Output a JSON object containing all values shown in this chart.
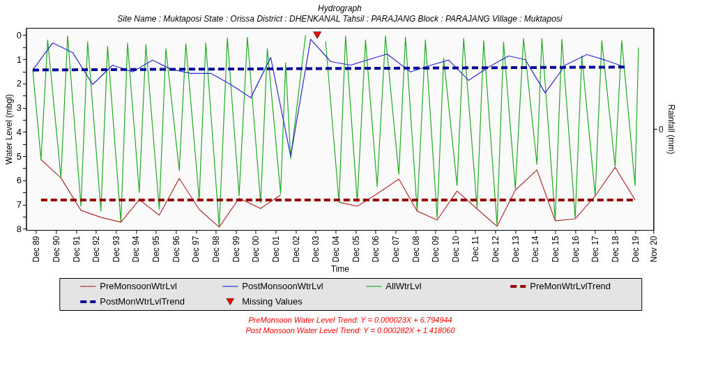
{
  "chart_data": {
    "type": "line",
    "title": "Hydrograph",
    "subtitle": "Site Name : Muktaposi  State : Orissa District : DHENKANAL  Tahsil : PARAJANG  Block : PARAJANG Village : Muktaposi",
    "xlabel": "Time",
    "ylabel": "Water Level (mbgl)",
    "y2label": "Rainfall (mm)",
    "xlim": [
      "1989-06-01",
      "2020-11-01"
    ],
    "xticks": [
      {
        "value": "1989-12-01",
        "label": "Dec 89"
      },
      {
        "value": "1990-12-01",
        "label": "Dec 90"
      },
      {
        "value": "1991-12-01",
        "label": "Dec 91"
      },
      {
        "value": "1992-12-01",
        "label": "Dec 92"
      },
      {
        "value": "1993-12-01",
        "label": "Dec 93"
      },
      {
        "value": "1994-12-01",
        "label": "Dec 94"
      },
      {
        "value": "1995-12-01",
        "label": "Dec 95"
      },
      {
        "value": "1996-12-01",
        "label": "Dec 96"
      },
      {
        "value": "1997-12-01",
        "label": "Dec 97"
      },
      {
        "value": "1998-12-01",
        "label": "Dec 98"
      },
      {
        "value": "1999-12-01",
        "label": "Dec 99"
      },
      {
        "value": "2000-12-01",
        "label": "Dec 00"
      },
      {
        "value": "2001-12-01",
        "label": "Dec 01"
      },
      {
        "value": "2002-12-01",
        "label": "Dec 02"
      },
      {
        "value": "2003-12-01",
        "label": "Dec 03"
      },
      {
        "value": "2004-12-01",
        "label": "Dec 04"
      },
      {
        "value": "2005-12-01",
        "label": "Dec 05"
      },
      {
        "value": "2006-12-01",
        "label": "Dec 06"
      },
      {
        "value": "2007-12-01",
        "label": "Dec 07"
      },
      {
        "value": "2008-12-01",
        "label": "Dec 08"
      },
      {
        "value": "2009-12-01",
        "label": "Dec 09"
      },
      {
        "value": "2010-12-01",
        "label": "Dec 10"
      },
      {
        "value": "2011-12-01",
        "label": "Dec 11"
      },
      {
        "value": "2012-12-01",
        "label": "Dec 12"
      },
      {
        "value": "2013-12-01",
        "label": "Dec 13"
      },
      {
        "value": "2014-12-01",
        "label": "Dec 14"
      },
      {
        "value": "2015-12-01",
        "label": "Dec 15"
      },
      {
        "value": "2016-12-01",
        "label": "Dec 16"
      },
      {
        "value": "2017-12-01",
        "label": "Dec 17"
      },
      {
        "value": "2018-12-01",
        "label": "Dec 18"
      },
      {
        "value": "2019-12-01",
        "label": "Dec 19"
      },
      {
        "value": "2020-11-01",
        "label": "Nov 20"
      }
    ],
    "ylim": [
      8.05,
      -0.3
    ],
    "yticks": [
      0,
      {
        "value": 0.5,
        "label": null
      },
      1,
      {
        "value": 1.5,
        "label": null
      },
      2,
      {
        "value": 2.5,
        "label": null
      },
      3,
      {
        "value": 3.5,
        "label": null
      },
      4,
      {
        "value": 4.5,
        "label": null
      },
      5,
      {
        "value": 5.5,
        "label": null
      },
      6,
      {
        "value": 6.5,
        "label": null
      },
      7,
      {
        "value": 7.5,
        "label": null
      },
      8
    ],
    "grid": false,
    "legend": "bottom",
    "series": [
      {
        "name": "PreMonsoonWtrLvl",
        "color": "#b03030",
        "line_style": "solid",
        "x": [
          "1990-03",
          "1991-03",
          "1992-03",
          "1993-03",
          "1994-03",
          "1995-02",
          "1996-02",
          "1997-02",
          "1998-02",
          "1999-02",
          "2000-02",
          "2001-03",
          "2002-03",
          "2004-01",
          "2005-02",
          "2006-01",
          "2007-01",
          "2008-02",
          "2009-01",
          "2010-01",
          "2011-01",
          "2012-01",
          "2013-01",
          "2013-12",
          "2015-01",
          "2015-12",
          "2016-12",
          "2017-12",
          "2018-12",
          "2019-12"
        ],
        "values": [
          5.14,
          5.9,
          7.24,
          7.53,
          7.73,
          6.8,
          7.44,
          5.92,
          7.2,
          7.93,
          6.74,
          7.16,
          6.6,
          null,
          6.9,
          7.07,
          6.55,
          5.95,
          7.27,
          7.64,
          6.44,
          7.18,
          7.9,
          6.41,
          5.57,
          7.67,
          7.59,
          6.64,
          5.46,
          6.81
        ]
      },
      {
        "name": "PostMonsoonWtrLvl",
        "color": "#2a2ad0",
        "line_style": "solid",
        "x": [
          "1989-10",
          "1990-10",
          "1991-10",
          "1992-10",
          "1993-10",
          "1994-10",
          "1995-10",
          "1996-09",
          "1997-09",
          "1998-09",
          "1999-09",
          "2000-09",
          "2001-09",
          "2002-09",
          "2003-09",
          "2004-09",
          "2005-09",
          "2007-07",
          "2008-09",
          "2009-07",
          "2010-08",
          "2011-08",
          "2012-08",
          "2013-08",
          "2014-06",
          "2015-06",
          "2016-06",
          "2017-07",
          "2018-06",
          "2019-06"
        ],
        "values": [
          1.44,
          0.32,
          0.72,
          2.04,
          1.24,
          1.52,
          1.03,
          1.41,
          1.58,
          1.58,
          2.04,
          2.59,
          0.92,
          5.0,
          0.17,
          1.09,
          1.24,
          0.78,
          1.52,
          1.29,
          1.03,
          1.87,
          1.32,
          0.86,
          1.01,
          2.39,
          1.24,
          0.8,
          1.03,
          1.32
        ]
      },
      {
        "name": "AllWtrLvl",
        "color": "#22aa22",
        "line_style": "solid",
        "x": [
          "1989-10",
          "1990-03",
          "1990-07",
          "1991-03",
          "1991-07",
          "1992-03",
          "1992-07",
          "1993-03",
          "1993-07",
          "1994-03",
          "1994-07",
          "1995-02",
          "1995-06",
          "1996-02",
          "1996-06",
          "1997-02",
          "1997-06",
          "1998-02",
          "1998-06",
          "1999-02",
          "1999-07",
          "2000-02",
          "2000-07",
          "2001-03",
          "2001-07",
          "2002-03",
          "2002-06",
          "2002-09",
          "2003-06",
          "2004-01",
          "2004-06",
          "2005-02",
          "2005-06",
          "2006-01",
          "2006-06",
          "2007-01",
          "2007-06",
          "2008-02",
          "2008-06",
          "2009-01",
          "2009-06",
          "2010-01",
          "2010-05",
          "2011-01",
          "2011-05",
          "2012-01",
          "2012-05",
          "2013-01",
          "2013-05",
          "2013-12",
          "2014-05",
          "2015-01",
          "2015-04",
          "2015-12",
          "2016-04",
          "2016-12",
          "2017-04",
          "2017-12",
          "2018-04",
          "2018-12",
          "2019-04",
          "2019-12",
          "2020-02"
        ],
        "values": [
          1.44,
          5.14,
          0.2,
          5.9,
          0.03,
          7.07,
          0.28,
          7.27,
          0.46,
          7.73,
          0.33,
          6.5,
          0.39,
          7.2,
          0.56,
          5.6,
          0.35,
          6.8,
          0.32,
          7.93,
          0.11,
          6.64,
          0.09,
          6.93,
          0.56,
          6.55,
          1.15,
          5.1,
          0.0,
          null,
          0.26,
          6.9,
          0.03,
          6.9,
          0.2,
          6.26,
          0.03,
          5.75,
          0.09,
          7.27,
          0.2,
          7.56,
          0.95,
          6.21,
          0.14,
          7.13,
          0.23,
          7.84,
          0.29,
          6.35,
          0.14,
          5.34,
          0.14,
          7.64,
          0.17,
          7.56,
          0.86,
          6.64,
          0.23,
          5.43,
          0.23,
          6.21,
          0.52
        ]
      },
      {
        "name": "PreMonWtrLvlTrend",
        "color": "#990000",
        "line_style": "dashed",
        "x": [
          "1990-03",
          "2019-12"
        ],
        "values": [
          6.81,
          6.81
        ]
      },
      {
        "name": "PostMonWtrLvlTrend",
        "color": "#000099",
        "line_style": "dashed",
        "x": [
          "1989-10",
          "2019-06"
        ],
        "values": [
          1.44,
          1.32
        ]
      },
      {
        "name": "Missing Values",
        "color": "#ff0000",
        "type": "scatter",
        "marker": "triangle",
        "x": [
          "2004-01"
        ],
        "values": [
          0
        ]
      }
    ],
    "annotations": [
      "0",
      "PreMonsoon Water Level Trend: Y = 0.000023X + 6.794944",
      "Post Monsoon Water Level Trend: Y = 0.000282X + 1.418060"
    ]
  }
}
